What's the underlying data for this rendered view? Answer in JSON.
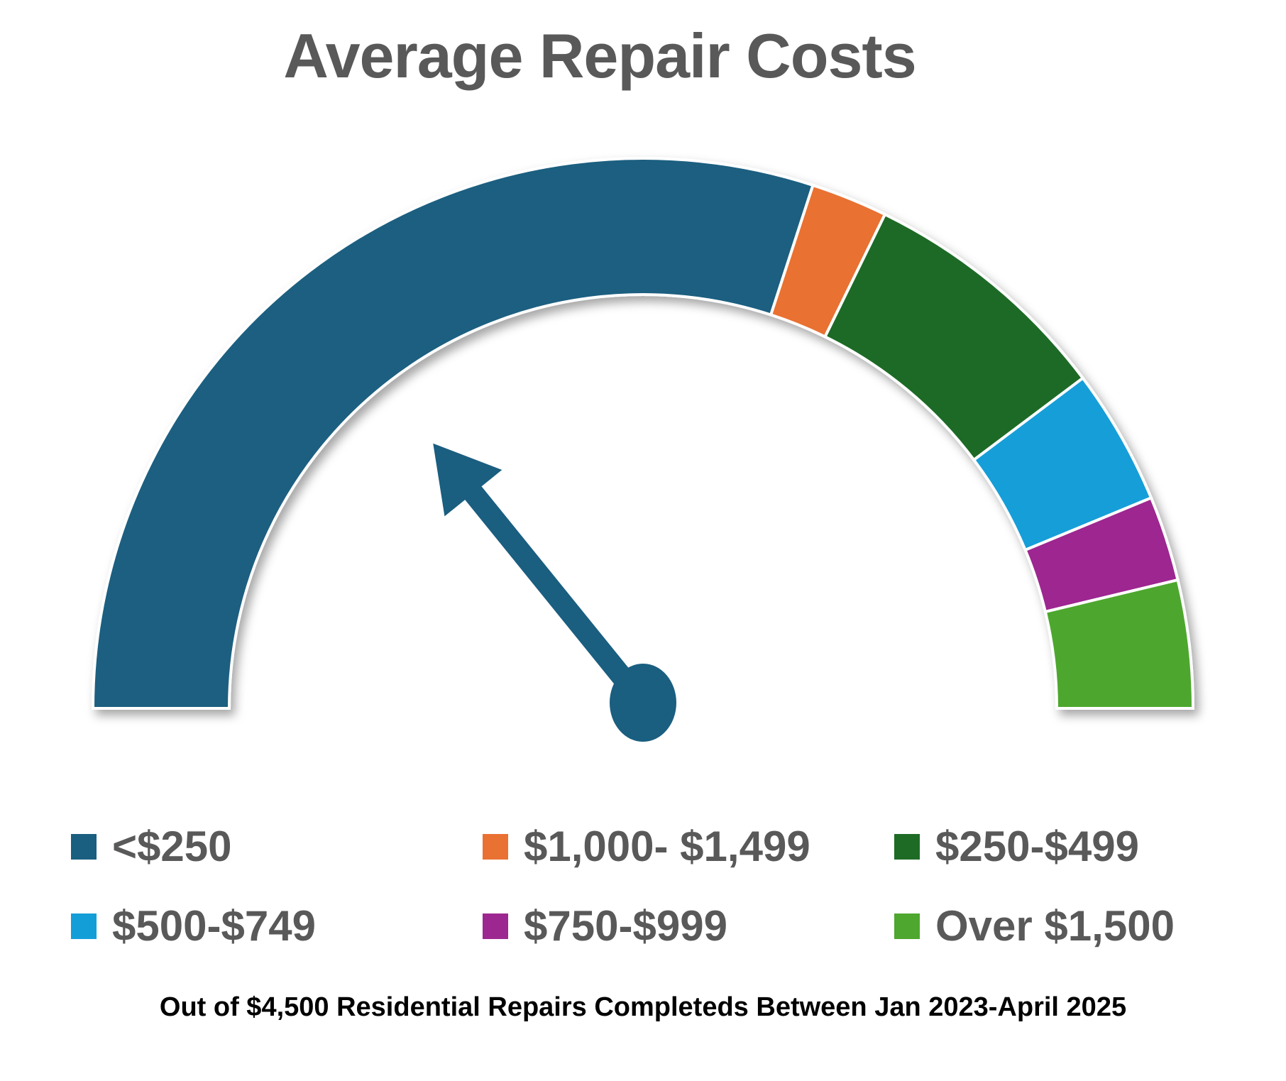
{
  "title": "Average Repair Costs",
  "footnote": "Out of $4,500 Residential Repairs Completeds Between Jan 2023-April 2025",
  "chart_data": {
    "type": "pie",
    "subtype": "half-donut gauge",
    "title": "Average Repair Costs",
    "segments": [
      {
        "label": "<$250",
        "value": 60,
        "color": "#1a5e80"
      },
      {
        "label": "$1,000- $1,499",
        "value": 4.5,
        "color": "#e97132"
      },
      {
        "label": "$250-$499",
        "value": 15,
        "color": "#1e6b26"
      },
      {
        "label": "$500-$749",
        "value": 8,
        "color": "#139ed8"
      },
      {
        "label": "$750-$999",
        "value": 5,
        "color": "#9d2790"
      },
      {
        "label": "Over $1,500",
        "value": 7.5,
        "color": "#4ea72e"
      }
    ],
    "needle": {
      "angle_degrees_from_left": 51,
      "color": "#1a5e80"
    },
    "legend_position": "bottom"
  },
  "legend": [
    {
      "label": "<$250",
      "color": "#1a5e80"
    },
    {
      "label": "$1,000- $1,499",
      "color": "#e97132"
    },
    {
      "label": "$250-$499",
      "color": "#1e6b26"
    },
    {
      "label": "$500-$749",
      "color": "#139ed8"
    },
    {
      "label": "$750-$999",
      "color": "#9d2790"
    },
    {
      "label": "Over $1,500",
      "color": "#4ea72e"
    }
  ]
}
